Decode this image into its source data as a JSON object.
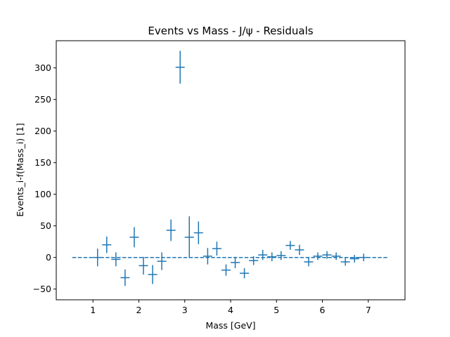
{
  "chart_data": {
    "type": "scatter",
    "title": "Events vs Mass - J/ψ - Residuals",
    "xlabel": "Mass [GeV]",
    "ylabel": "Events_i-f(Mass_i) [1]",
    "xlim": [
      0.2,
      7.8
    ],
    "ylim": [
      -67,
      343
    ],
    "xticks": [
      1,
      2,
      3,
      4,
      5,
      6,
      7
    ],
    "yticks": [
      -50,
      0,
      50,
      100,
      150,
      200,
      250,
      300
    ],
    "grid": false,
    "series_color": "#1f77b4",
    "baseline": {
      "y": 0,
      "x_range": [
        0.55,
        7.45
      ],
      "style": "dashed"
    },
    "points": [
      {
        "x": 1.1,
        "y": 0,
        "xerr": 0.1,
        "yerr": 14
      },
      {
        "x": 1.3,
        "y": 20,
        "xerr": 0.1,
        "yerr": 13
      },
      {
        "x": 1.5,
        "y": -3,
        "xerr": 0.1,
        "yerr": 11
      },
      {
        "x": 1.7,
        "y": -32,
        "xerr": 0.1,
        "yerr": 13
      },
      {
        "x": 1.9,
        "y": 32,
        "xerr": 0.1,
        "yerr": 16
      },
      {
        "x": 2.1,
        "y": -13,
        "xerr": 0.1,
        "yerr": 14
      },
      {
        "x": 2.3,
        "y": -27,
        "xerr": 0.1,
        "yerr": 15
      },
      {
        "x": 2.5,
        "y": -6,
        "xerr": 0.1,
        "yerr": 14
      },
      {
        "x": 2.7,
        "y": 43,
        "xerr": 0.1,
        "yerr": 17
      },
      {
        "x": 2.9,
        "y": 301,
        "xerr": 0.1,
        "yerr": 26
      },
      {
        "x": 3.1,
        "y": 32,
        "xerr": 0.1,
        "yerr": 33
      },
      {
        "x": 3.3,
        "y": 39,
        "xerr": 0.1,
        "yerr": 18
      },
      {
        "x": 3.5,
        "y": 2,
        "xerr": 0.1,
        "yerr": 13
      },
      {
        "x": 3.7,
        "y": 14,
        "xerr": 0.1,
        "yerr": 11
      },
      {
        "x": 3.9,
        "y": -20,
        "xerr": 0.1,
        "yerr": 9
      },
      {
        "x": 4.1,
        "y": -8,
        "xerr": 0.1,
        "yerr": 9
      },
      {
        "x": 4.3,
        "y": -25,
        "xerr": 0.1,
        "yerr": 8
      },
      {
        "x": 4.5,
        "y": -5,
        "xerr": 0.1,
        "yerr": 7
      },
      {
        "x": 4.7,
        "y": 4,
        "xerr": 0.1,
        "yerr": 8
      },
      {
        "x": 4.9,
        "y": 1,
        "xerr": 0.1,
        "yerr": 7
      },
      {
        "x": 5.1,
        "y": 3,
        "xerr": 0.1,
        "yerr": 7
      },
      {
        "x": 5.3,
        "y": 19,
        "xerr": 0.1,
        "yerr": 7
      },
      {
        "x": 5.5,
        "y": 12,
        "xerr": 0.1,
        "yerr": 8
      },
      {
        "x": 5.7,
        "y": -7,
        "xerr": 0.1,
        "yerr": 7
      },
      {
        "x": 5.9,
        "y": 2,
        "xerr": 0.1,
        "yerr": 6
      },
      {
        "x": 6.1,
        "y": 4,
        "xerr": 0.1,
        "yerr": 6
      },
      {
        "x": 6.3,
        "y": 2,
        "xerr": 0.1,
        "yerr": 6
      },
      {
        "x": 6.5,
        "y": -7,
        "xerr": 0.1,
        "yerr": 6
      },
      {
        "x": 6.7,
        "y": -2,
        "xerr": 0.1,
        "yerr": 6
      },
      {
        "x": 6.9,
        "y": 0,
        "xerr": 0.1,
        "yerr": 6
      }
    ]
  }
}
